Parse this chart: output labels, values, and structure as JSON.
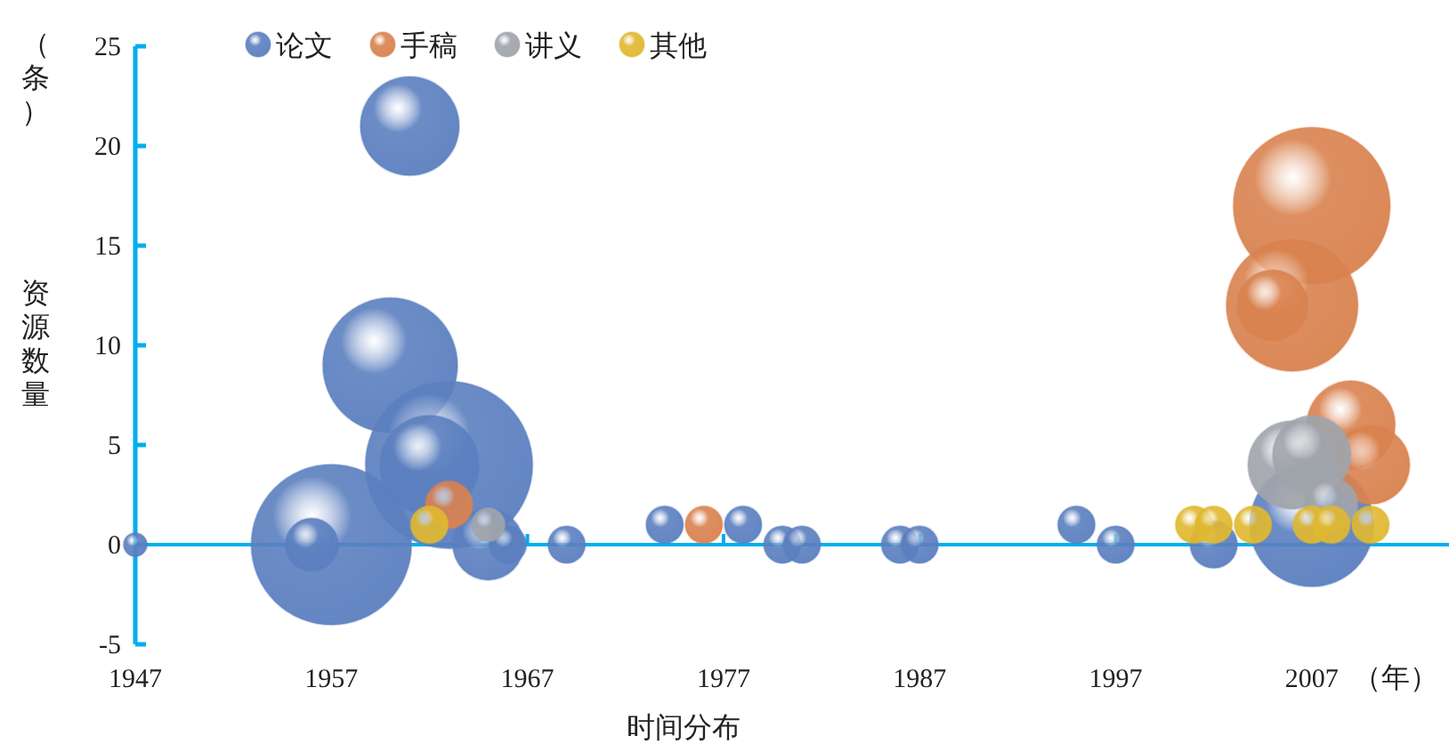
{
  "chart_data": {
    "type": "bubble",
    "xlabel": "时间分布",
    "ylabel": "资源数量",
    "annotations": [
      "（条）",
      "（年）"
    ],
    "legend": "top",
    "ref_lines": [
      {
        "axis": "y",
        "value": 0,
        "color": "#00aeef"
      }
    ],
    "xlim": [
      1947,
      2014
    ],
    "ylim": [
      -5,
      25
    ],
    "xticks": [
      1947,
      1957,
      1967,
      1977,
      1987,
      1997,
      2007
    ],
    "yticks": [
      -5,
      0,
      5,
      10,
      15,
      20,
      25
    ],
    "series": [
      {
        "name": "论文",
        "color": "#5b7fbf",
        "x": [
          1947,
          1957,
          1956,
          1961,
          1960,
          1963,
          1962,
          1965,
          1966,
          1969,
          1974,
          1978,
          1980,
          1981,
          1986,
          1987,
          1995,
          1997,
          2002,
          2007
        ],
        "values": [
          0,
          0,
          0,
          21,
          9,
          4,
          4,
          0,
          0,
          0,
          1,
          1,
          0,
          0,
          0,
          0,
          1,
          0,
          0,
          1
        ],
        "sizes": [
          0.02,
          0.92,
          0.1,
          0.35,
          0.65,
          1,
          0.35,
          0.18,
          0.05,
          0.05,
          0.05,
          0.05,
          0.05,
          0.05,
          0.05,
          0.05,
          0.05,
          0.05,
          0.08,
          0.55
        ]
      },
      {
        "name": "手稿",
        "color": "#d9824f",
        "x": [
          1963,
          1976,
          2007,
          2006,
          2005,
          2009,
          2010
        ],
        "values": [
          2,
          1,
          17,
          12,
          12,
          6,
          4
        ],
        "sizes": [
          0.08,
          0.05,
          0.88,
          0.62,
          0.18,
          0.28,
          0.22
        ]
      },
      {
        "name": "讲义",
        "color": "#a0a4ab",
        "x": [
          1965,
          2006,
          2007,
          2008
        ],
        "values": [
          1,
          4,
          4.5,
          2
        ],
        "sizes": [
          0.04,
          0.28,
          0.22,
          0.1
        ]
      },
      {
        "name": "其他",
        "color": "#e0b830",
        "x": [
          1962,
          2001,
          2002,
          2004,
          2007,
          2008,
          2010
        ],
        "values": [
          1,
          1,
          1,
          1,
          1,
          1,
          1
        ],
        "sizes": [
          0.05,
          0.05,
          0.05,
          0.05,
          0.05,
          0.05,
          0.05
        ]
      }
    ]
  }
}
